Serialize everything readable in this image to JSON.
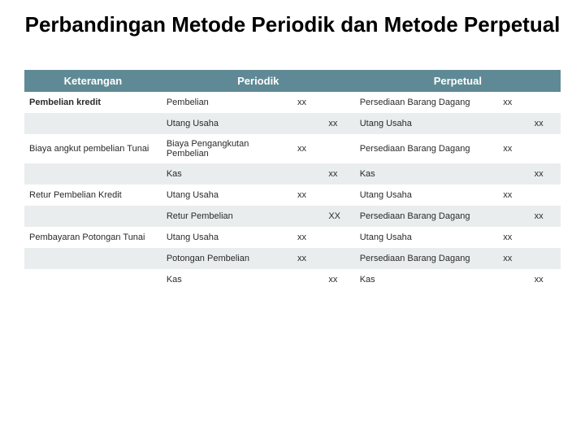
{
  "title": "Perbandingan Metode Periodik dan Metode Perpetual",
  "headers": {
    "keterangan": "Keterangan",
    "periodik": "Periodik",
    "perpetual": "Perpetual"
  },
  "style": {
    "header_bg": "#5f8a95",
    "header_fg": "#ffffff",
    "stripe_bg": "#e9edee",
    "plain_bg": "#ffffff",
    "title_fontsize": 26,
    "header_fontsize": 13,
    "cell_fontsize": 11,
    "columns": [
      {
        "key": "keterangan",
        "width_pct": 22
      },
      {
        "key": "periodik_acc",
        "width_pct": 21
      },
      {
        "key": "periodik_dr",
        "width_pct": 5
      },
      {
        "key": "periodik_cr",
        "width_pct": 5
      },
      {
        "key": "perpetual_acc",
        "width_pct": 23
      },
      {
        "key": "perpetual_dr",
        "width_pct": 5
      },
      {
        "key": "perpetual_cr",
        "width_pct": 5
      }
    ]
  },
  "rows": [
    {
      "stripe": false,
      "ket": "Pembelian kredit",
      "ket_bold": true,
      "per_acc": "Pembelian",
      "per_ind": false,
      "per_dr": "xx",
      "per_cr": "",
      "pp_acc": "Persediaan Barang Dagang",
      "pp_ind": false,
      "pp_dr": "xx",
      "pp_cr": ""
    },
    {
      "stripe": true,
      "ket": "",
      "ket_bold": false,
      "per_acc": "Utang Usaha",
      "per_ind": true,
      "per_dr": "",
      "per_cr": "xx",
      "pp_acc": "Utang Usaha",
      "pp_ind": true,
      "pp_dr": "",
      "pp_cr": "xx"
    },
    {
      "stripe": false,
      "ket": "Biaya angkut pembelian Tunai",
      "ket_bold": false,
      "per_acc": "Biaya Pengangkutan Pembelian",
      "per_ind": false,
      "per_dr": "xx",
      "per_cr": "",
      "pp_acc": "Persediaan Barang Dagang",
      "pp_ind": false,
      "pp_dr": "xx",
      "pp_cr": ""
    },
    {
      "stripe": true,
      "ket": "",
      "ket_bold": false,
      "per_acc": "Kas",
      "per_ind": true,
      "per_dr": "",
      "per_cr": "xx",
      "pp_acc": "Kas",
      "pp_ind": true,
      "pp_dr": "",
      "pp_cr": "xx"
    },
    {
      "stripe": false,
      "ket": "Retur Pembelian Kredit",
      "ket_bold": false,
      "per_acc": "Utang Usaha",
      "per_ind": false,
      "per_dr": "xx",
      "per_cr": "",
      "pp_acc": "Utang Usaha",
      "pp_ind": false,
      "pp_dr": "xx",
      "pp_cr": ""
    },
    {
      "stripe": true,
      "ket": "",
      "ket_bold": false,
      "per_acc": "Retur Pembelian",
      "per_ind": true,
      "per_dr": "",
      "per_cr": "XX",
      "pp_acc": "Persediaan Barang Dagang",
      "pp_ind": true,
      "pp_dr": "",
      "pp_cr": "xx"
    },
    {
      "stripe": false,
      "ket": "Pembayaran Potongan Tunai",
      "ket_bold": false,
      "per_acc": "Utang Usaha",
      "per_ind": false,
      "per_dr": "xx",
      "per_cr": "",
      "pp_acc": "Utang Usaha",
      "pp_ind": false,
      "pp_dr": "xx",
      "pp_cr": ""
    },
    {
      "stripe": true,
      "ket": "",
      "ket_bold": false,
      "per_acc": "Potongan Pembelian",
      "per_ind": true,
      "per_dr": "xx",
      "per_cr": "",
      "pp_acc": "Persediaan Barang Dagang",
      "pp_ind": true,
      "pp_dr": "xx",
      "pp_cr": ""
    },
    {
      "stripe": false,
      "ket": "",
      "ket_bold": false,
      "per_acc": "Kas",
      "per_ind": true,
      "per_dr": "",
      "per_cr": "xx",
      "pp_acc": "Kas",
      "pp_ind": true,
      "pp_dr": "",
      "pp_cr": "xx"
    }
  ]
}
